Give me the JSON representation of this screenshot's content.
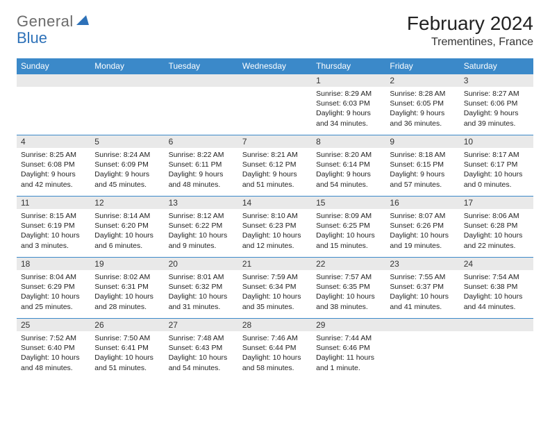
{
  "logo": {
    "part1": "General",
    "part2": "Blue"
  },
  "title": "February 2024",
  "location": "Trementines, France",
  "colors": {
    "header_bg": "#3b89c9",
    "header_text": "#ffffff",
    "daynum_bg": "#e9e9e9",
    "cell_border_top": "#3b89c9",
    "logo_gray": "#6b6b6b",
    "logo_blue": "#2d71b8"
  },
  "day_names": [
    "Sunday",
    "Monday",
    "Tuesday",
    "Wednesday",
    "Thursday",
    "Friday",
    "Saturday"
  ],
  "weeks": [
    [
      null,
      null,
      null,
      null,
      {
        "n": "1",
        "sr": "8:29 AM",
        "ss": "6:03 PM",
        "dl": "9 hours and 34 minutes."
      },
      {
        "n": "2",
        "sr": "8:28 AM",
        "ss": "6:05 PM",
        "dl": "9 hours and 36 minutes."
      },
      {
        "n": "3",
        "sr": "8:27 AM",
        "ss": "6:06 PM",
        "dl": "9 hours and 39 minutes."
      }
    ],
    [
      {
        "n": "4",
        "sr": "8:25 AM",
        "ss": "6:08 PM",
        "dl": "9 hours and 42 minutes."
      },
      {
        "n": "5",
        "sr": "8:24 AM",
        "ss": "6:09 PM",
        "dl": "9 hours and 45 minutes."
      },
      {
        "n": "6",
        "sr": "8:22 AM",
        "ss": "6:11 PM",
        "dl": "9 hours and 48 minutes."
      },
      {
        "n": "7",
        "sr": "8:21 AM",
        "ss": "6:12 PM",
        "dl": "9 hours and 51 minutes."
      },
      {
        "n": "8",
        "sr": "8:20 AM",
        "ss": "6:14 PM",
        "dl": "9 hours and 54 minutes."
      },
      {
        "n": "9",
        "sr": "8:18 AM",
        "ss": "6:15 PM",
        "dl": "9 hours and 57 minutes."
      },
      {
        "n": "10",
        "sr": "8:17 AM",
        "ss": "6:17 PM",
        "dl": "10 hours and 0 minutes."
      }
    ],
    [
      {
        "n": "11",
        "sr": "8:15 AM",
        "ss": "6:19 PM",
        "dl": "10 hours and 3 minutes."
      },
      {
        "n": "12",
        "sr": "8:14 AM",
        "ss": "6:20 PM",
        "dl": "10 hours and 6 minutes."
      },
      {
        "n": "13",
        "sr": "8:12 AM",
        "ss": "6:22 PM",
        "dl": "10 hours and 9 minutes."
      },
      {
        "n": "14",
        "sr": "8:10 AM",
        "ss": "6:23 PM",
        "dl": "10 hours and 12 minutes."
      },
      {
        "n": "15",
        "sr": "8:09 AM",
        "ss": "6:25 PM",
        "dl": "10 hours and 15 minutes."
      },
      {
        "n": "16",
        "sr": "8:07 AM",
        "ss": "6:26 PM",
        "dl": "10 hours and 19 minutes."
      },
      {
        "n": "17",
        "sr": "8:06 AM",
        "ss": "6:28 PM",
        "dl": "10 hours and 22 minutes."
      }
    ],
    [
      {
        "n": "18",
        "sr": "8:04 AM",
        "ss": "6:29 PM",
        "dl": "10 hours and 25 minutes."
      },
      {
        "n": "19",
        "sr": "8:02 AM",
        "ss": "6:31 PM",
        "dl": "10 hours and 28 minutes."
      },
      {
        "n": "20",
        "sr": "8:01 AM",
        "ss": "6:32 PM",
        "dl": "10 hours and 31 minutes."
      },
      {
        "n": "21",
        "sr": "7:59 AM",
        "ss": "6:34 PM",
        "dl": "10 hours and 35 minutes."
      },
      {
        "n": "22",
        "sr": "7:57 AM",
        "ss": "6:35 PM",
        "dl": "10 hours and 38 minutes."
      },
      {
        "n": "23",
        "sr": "7:55 AM",
        "ss": "6:37 PM",
        "dl": "10 hours and 41 minutes."
      },
      {
        "n": "24",
        "sr": "7:54 AM",
        "ss": "6:38 PM",
        "dl": "10 hours and 44 minutes."
      }
    ],
    [
      {
        "n": "25",
        "sr": "7:52 AM",
        "ss": "6:40 PM",
        "dl": "10 hours and 48 minutes."
      },
      {
        "n": "26",
        "sr": "7:50 AM",
        "ss": "6:41 PM",
        "dl": "10 hours and 51 minutes."
      },
      {
        "n": "27",
        "sr": "7:48 AM",
        "ss": "6:43 PM",
        "dl": "10 hours and 54 minutes."
      },
      {
        "n": "28",
        "sr": "7:46 AM",
        "ss": "6:44 PM",
        "dl": "10 hours and 58 minutes."
      },
      {
        "n": "29",
        "sr": "7:44 AM",
        "ss": "6:46 PM",
        "dl": "11 hours and 1 minute."
      },
      null,
      null
    ]
  ],
  "labels": {
    "sunrise_prefix": "Sunrise: ",
    "sunset_prefix": "Sunset: ",
    "daylight_prefix": "Daylight: "
  }
}
